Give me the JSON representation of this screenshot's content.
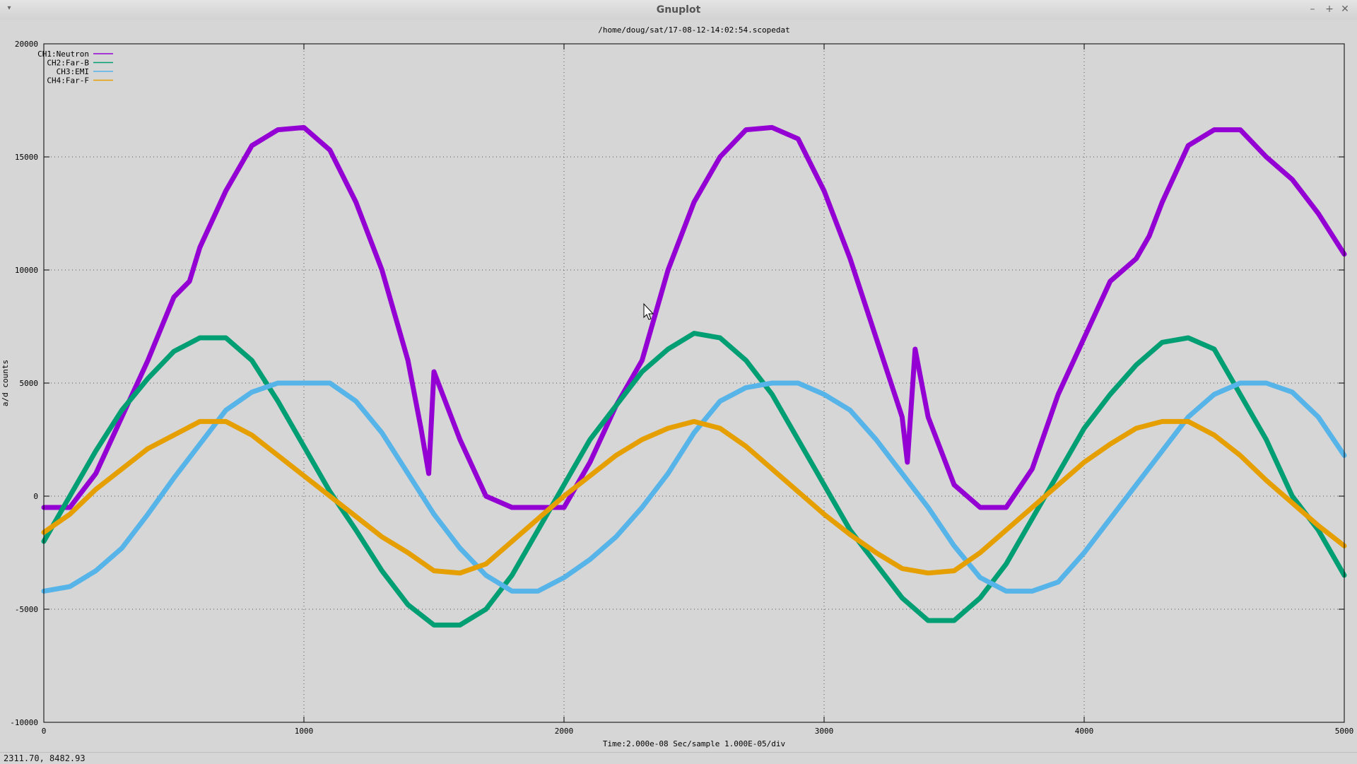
{
  "window": {
    "title": "Gnuplot",
    "menu_icon": "triangle-down-icon",
    "minimize_icon": "minimize-icon",
    "maximize_icon": "maximize-icon",
    "close_icon": "close-icon"
  },
  "status": {
    "coords": "2311.70,  8482.93"
  },
  "chart_data": {
    "type": "line",
    "title": "/home/doug/sat/17-08-12-14:02:54.scopedat",
    "xlabel": "Time:2.000e-08 Sec/sample 1.000E-05/div",
    "ylabel": "a/d counts",
    "xlim": [
      0,
      5000
    ],
    "ylim": [
      -10000,
      20000
    ],
    "xticks": [
      0,
      1000,
      2000,
      3000,
      4000,
      5000
    ],
    "yticks": [
      -10000,
      -5000,
      0,
      5000,
      10000,
      15000,
      20000
    ],
    "grid": true,
    "legend_position": "top-left",
    "series": [
      {
        "name": "CH1:Neutron",
        "color": "#9400d3",
        "x": [
          0,
          100,
          200,
          300,
          400,
          500,
          560,
          600,
          700,
          800,
          900,
          1000,
          1100,
          1200,
          1300,
          1400,
          1450,
          1480,
          1500,
          1600,
          1700,
          1800,
          1900,
          2000,
          2100,
          2200,
          2300,
          2400,
          2500,
          2600,
          2700,
          2800,
          2900,
          3000,
          3100,
          3200,
          3300,
          3320,
          3350,
          3400,
          3500,
          3600,
          3700,
          3800,
          3900,
          4000,
          4100,
          4200,
          4250,
          4300,
          4400,
          4500,
          4600,
          4700,
          4800,
          4900,
          5000
        ],
        "y": [
          -500,
          -500,
          1000,
          3500,
          6000,
          8800,
          9500,
          11000,
          13500,
          15500,
          16200,
          16300,
          15300,
          13000,
          10000,
          6000,
          3000,
          1000,
          5500,
          2500,
          0,
          -500,
          -500,
          -500,
          1500,
          4000,
          6000,
          10000,
          13000,
          15000,
          16200,
          16300,
          15800,
          13500,
          10500,
          7000,
          3500,
          1500,
          6500,
          3500,
          500,
          -500,
          -500,
          1200,
          4500,
          7000,
          9500,
          10500,
          11500,
          13000,
          15500,
          16200,
          16200,
          15000,
          14000,
          12500,
          10700
        ]
      },
      {
        "name": "CH2:Far-B",
        "color": "#009e73",
        "x": [
          0,
          100,
          200,
          300,
          400,
          500,
          600,
          700,
          800,
          900,
          1000,
          1100,
          1200,
          1300,
          1400,
          1500,
          1600,
          1700,
          1800,
          1900,
          2000,
          2100,
          2200,
          2300,
          2400,
          2500,
          2600,
          2700,
          2800,
          2900,
          3000,
          3100,
          3200,
          3300,
          3400,
          3500,
          3600,
          3700,
          3800,
          3900,
          4000,
          4100,
          4200,
          4300,
          4400,
          4500,
          4600,
          4700,
          4800,
          4900,
          5000
        ],
        "y": [
          -2000,
          0,
          2000,
          3800,
          5200,
          6400,
          7000,
          7000,
          6000,
          4200,
          2200,
          200,
          -1500,
          -3300,
          -4800,
          -5700,
          -5700,
          -5000,
          -3500,
          -1500,
          500,
          2500,
          4000,
          5500,
          6500,
          7200,
          7000,
          6000,
          4500,
          2500,
          500,
          -1500,
          -3000,
          -4500,
          -5500,
          -5500,
          -4500,
          -3000,
          -1000,
          1000,
          3000,
          4500,
          5800,
          6800,
          7000,
          6500,
          4500,
          2500,
          0,
          -1500,
          -3500
        ]
      },
      {
        "name": "CH3:EMI",
        "color": "#56b4e9",
        "x": [
          0,
          100,
          200,
          300,
          400,
          500,
          600,
          700,
          800,
          900,
          1000,
          1100,
          1200,
          1300,
          1400,
          1500,
          1600,
          1700,
          1800,
          1900,
          2000,
          2100,
          2200,
          2300,
          2400,
          2500,
          2600,
          2700,
          2800,
          2900,
          3000,
          3100,
          3200,
          3300,
          3400,
          3500,
          3600,
          3700,
          3800,
          3900,
          4000,
          4100,
          4200,
          4300,
          4400,
          4500,
          4600,
          4700,
          4800,
          4900,
          5000
        ],
        "y": [
          -4200,
          -4000,
          -3300,
          -2300,
          -800,
          800,
          2300,
          3800,
          4600,
          5000,
          5000,
          5000,
          4200,
          2800,
          1000,
          -800,
          -2300,
          -3500,
          -4200,
          -4200,
          -3600,
          -2800,
          -1800,
          -500,
          1000,
          2800,
          4200,
          4800,
          5000,
          5000,
          4500,
          3800,
          2500,
          1000,
          -500,
          -2200,
          -3600,
          -4200,
          -4200,
          -3800,
          -2500,
          -1000,
          500,
          2000,
          3500,
          4500,
          5000,
          5000,
          4600,
          3500,
          1800
        ]
      },
      {
        "name": "CH4:Far-F",
        "color": "#e69f00",
        "x": [
          0,
          100,
          200,
          300,
          400,
          500,
          600,
          700,
          800,
          900,
          1000,
          1100,
          1200,
          1300,
          1400,
          1500,
          1600,
          1700,
          1800,
          1900,
          2000,
          2100,
          2200,
          2300,
          2400,
          2500,
          2600,
          2700,
          2800,
          2900,
          3000,
          3100,
          3200,
          3300,
          3400,
          3500,
          3600,
          3700,
          3800,
          3900,
          4000,
          4100,
          4200,
          4300,
          4400,
          4500,
          4600,
          4700,
          4800,
          4900,
          5000
        ],
        "y": [
          -1600,
          -800,
          300,
          1200,
          2100,
          2700,
          3300,
          3300,
          2700,
          1800,
          900,
          0,
          -900,
          -1800,
          -2500,
          -3300,
          -3400,
          -3000,
          -2000,
          -1000,
          0,
          900,
          1800,
          2500,
          3000,
          3300,
          3000,
          2200,
          1200,
          200,
          -800,
          -1700,
          -2500,
          -3200,
          -3400,
          -3300,
          -2500,
          -1500,
          -500,
          500,
          1500,
          2300,
          3000,
          3300,
          3300,
          2700,
          1800,
          700,
          -300,
          -1300,
          -2200
        ]
      }
    ]
  }
}
